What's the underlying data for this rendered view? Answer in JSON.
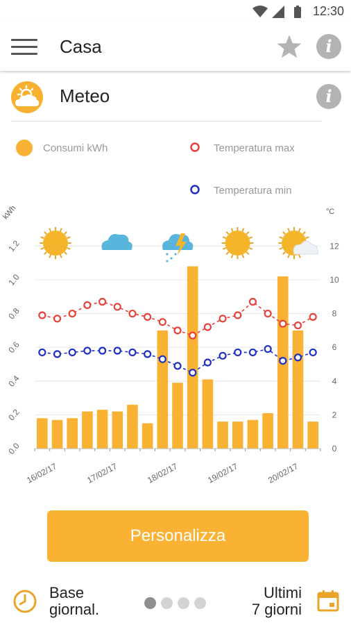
{
  "status_bar": {
    "time": "12:30"
  },
  "app_bar": {
    "title": "Casa",
    "menu_icon": "hamburger-menu-icon",
    "star_icon": "star-icon",
    "info_icon": "info-icon"
  },
  "section": {
    "title": "Meteo",
    "icon": "sun-cloud-icon"
  },
  "legend": {
    "consumption": "Consumi kWh",
    "temp_max": "Temperatura max",
    "temp_min": "Temperatura min"
  },
  "colors": {
    "bar": "#f9b233",
    "temp_max": "#e8403a",
    "temp_min": "#1f2fc4",
    "accent": "#f9b233"
  },
  "chart_data": {
    "type": "bar+line",
    "left_axis": {
      "label": "kWh",
      "ylim": [
        0,
        1.3
      ],
      "ticks": [
        "0.0",
        "0.2",
        "0.4",
        "0.6",
        "0.8",
        "1.0",
        "1.2"
      ]
    },
    "right_axis": {
      "label": "°C",
      "ylim": [
        0,
        13
      ],
      "ticks": [
        "0",
        "2",
        "4",
        "6",
        "8",
        "10",
        "12"
      ]
    },
    "x_tick_labels": [
      "16/02/17",
      "17/02/17",
      "18/02/17",
      "19/02/17",
      "20/02/17"
    ],
    "weather_icons": [
      "sun",
      "cloud",
      "storm",
      "sun",
      "sun-cloud"
    ],
    "bars_kwh": [
      0.18,
      0.17,
      0.18,
      0.22,
      0.23,
      0.22,
      0.26,
      0.15,
      0.7,
      0.39,
      1.08,
      0.41,
      0.16,
      0.16,
      0.17,
      0.21,
      1.02,
      0.7,
      0.16
    ],
    "temp_max": [
      7.9,
      7.7,
      8.0,
      8.5,
      8.7,
      8.4,
      8.0,
      7.8,
      7.5,
      7.0,
      6.7,
      7.2,
      7.7,
      7.9,
      8.7,
      8.0,
      7.4,
      7.3,
      7.8
    ],
    "temp_min": [
      5.7,
      5.6,
      5.7,
      5.8,
      5.8,
      5.8,
      5.7,
      5.6,
      5.3,
      4.9,
      4.5,
      5.1,
      5.5,
      5.7,
      5.7,
      5.9,
      5.2,
      5.4,
      5.7
    ],
    "grid": true
  },
  "actions": {
    "customize_label": "Personalizza"
  },
  "footer": {
    "base_label_1": "Base",
    "base_label_2": "giornal.",
    "range_label_1": "Ultimi",
    "range_label_2": "7 giorni",
    "pages_total": 4,
    "pages_active": 1
  }
}
